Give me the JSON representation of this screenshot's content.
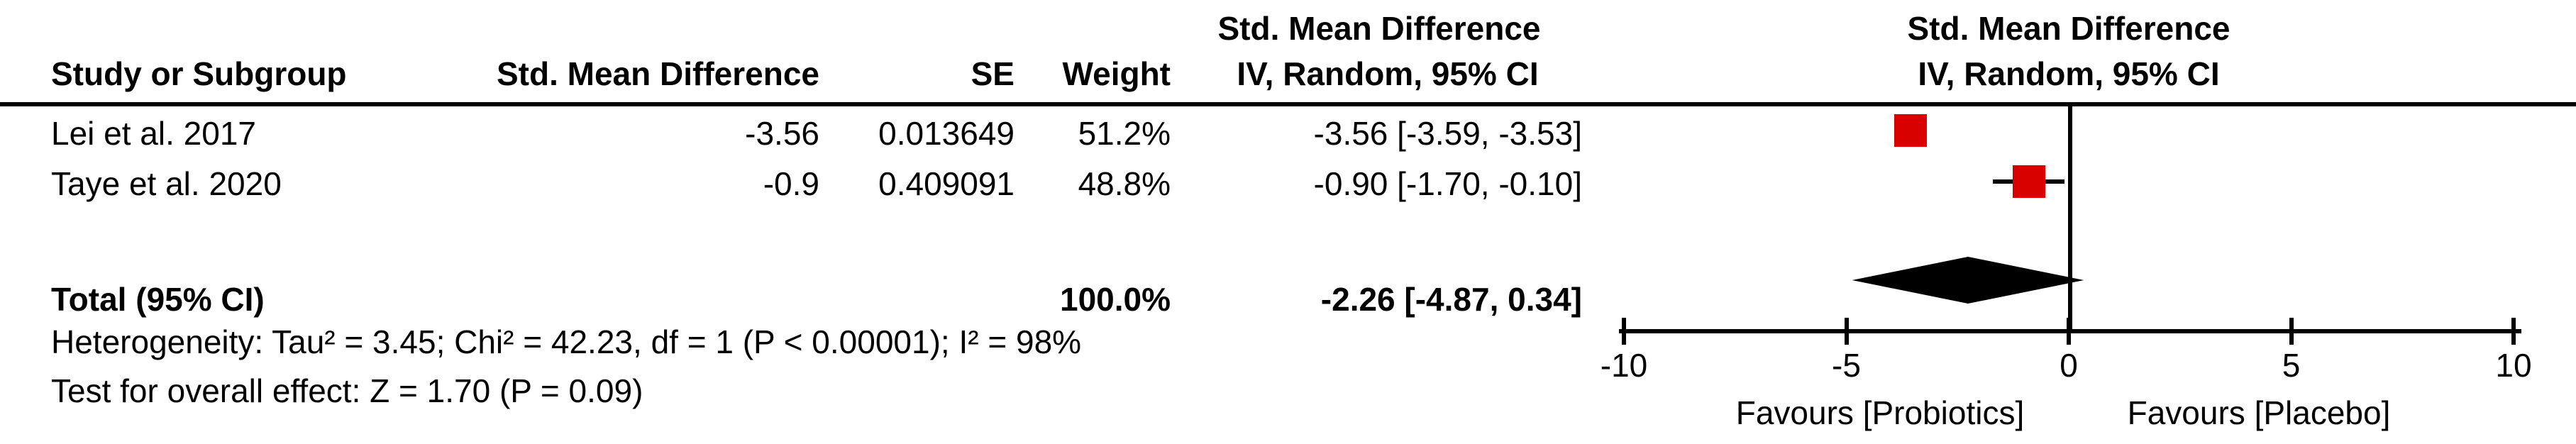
{
  "table": {
    "header_row1": {
      "smd_group": "Std. Mean Difference"
    },
    "header_row2": {
      "study": "Study or Subgroup",
      "smd": "Std. Mean Difference",
      "se": "SE",
      "weight": "Weight",
      "ci": "IV, Random, 95% CI"
    },
    "rows": [
      {
        "study": "Lei et al. 2017",
        "smd": "-3.56",
        "se": "0.013649",
        "weight": "51.2%",
        "ci": "-3.56 [-3.59, -3.53]"
      },
      {
        "study": "Taye et al. 2020",
        "smd": "-0.9",
        "se": "0.409091",
        "weight": "48.8%",
        "ci": "-0.90 [-1.70, -0.10]"
      }
    ],
    "total_row": {
      "label": "Total (95% CI)",
      "weight": "100.0%",
      "ci": "-2.26 [-4.87, 0.34]"
    },
    "heterogeneity": "Heterogeneity: Tau² = 3.45; Chi² = 42.23, df = 1 (P < 0.00001); I² = 98%",
    "overall_effect": "Test for overall effect: Z = 1.70 (P = 0.09)"
  },
  "plot": {
    "header_line1": "Std. Mean Difference",
    "header_line2": "IV, Random, 95% CI",
    "favours_left": "Favours [Probiotics]",
    "favours_right": "Favours [Placebo]",
    "marker_color": "#d90000",
    "diamond_color": "#000000",
    "line_color": "#000000"
  },
  "chart_data": {
    "type": "forest",
    "effect_measure": "Std. Mean Difference",
    "model": "IV, Random, 95% CI",
    "axis": {
      "xmin": -10,
      "xmax": 10,
      "ticks": [
        -10,
        -5,
        0,
        5,
        10
      ],
      "tick_labels": [
        "-10",
        "-5",
        "0",
        "5",
        "10"
      ],
      "label_left": "Favours [Probiotics]",
      "label_right": "Favours [Placebo]"
    },
    "studies": [
      {
        "name": "Lei et al. 2017",
        "smd": -3.56,
        "se": 0.013649,
        "weight_pct": 51.2,
        "ci_lower": -3.59,
        "ci_upper": -3.53
      },
      {
        "name": "Taye et al. 2020",
        "smd": -0.9,
        "se": 0.409091,
        "weight_pct": 48.8,
        "ci_lower": -1.7,
        "ci_upper": -0.1
      }
    ],
    "total": {
      "label": "Total (95% CI)",
      "smd": -2.26,
      "ci_lower": -4.87,
      "ci_upper": 0.34,
      "weight_pct": 100.0
    },
    "heterogeneity": {
      "tau2": 3.45,
      "chi2": 42.23,
      "df": 1,
      "p": "< 0.00001",
      "i2_pct": 98
    },
    "overall_effect": {
      "z": 1.7,
      "p": 0.09
    }
  }
}
